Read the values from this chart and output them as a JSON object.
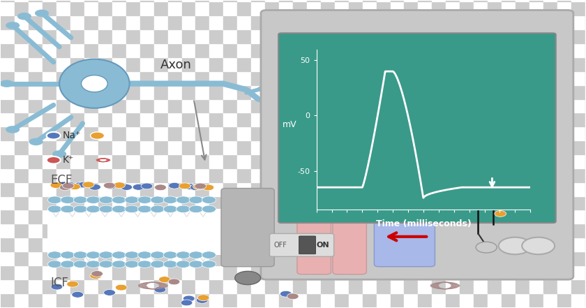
{
  "bg_color": "#ffffff",
  "monitor_bg": "#3a9a8a",
  "monitor_frame": "#c8c8c8",
  "action_potential": {
    "resting_mv": -65,
    "peak_mv": 40,
    "undershoot_mv": -75,
    "ylabel": "mV",
    "xlabel": "Time (milliseconds)",
    "yticks": [
      -50,
      0,
      50
    ],
    "line_color": "#ffffff",
    "bg_color": "#3a9a8a",
    "text_color": "#ffffff"
  },
  "neuron_color": "#89bcd4",
  "ecf_label": "ECF",
  "icf_label": "ICF",
  "axon_label": "Axon",
  "membrane_color": "#89bcd4",
  "na_blue_color": "#5577bb",
  "na_orange_color": "#e8a030",
  "k_red_color": "#cc5555",
  "na_label": "Na⁺",
  "k_label": "K⁺",
  "channel_pink": "#e8b0b0",
  "channel_blue": "#a8b8e8",
  "channel_gray": "#b5b5b5",
  "arrow_red": "#cc0000",
  "check_colors": [
    "#cccccc",
    "#ffffff"
  ],
  "check_square": 20
}
